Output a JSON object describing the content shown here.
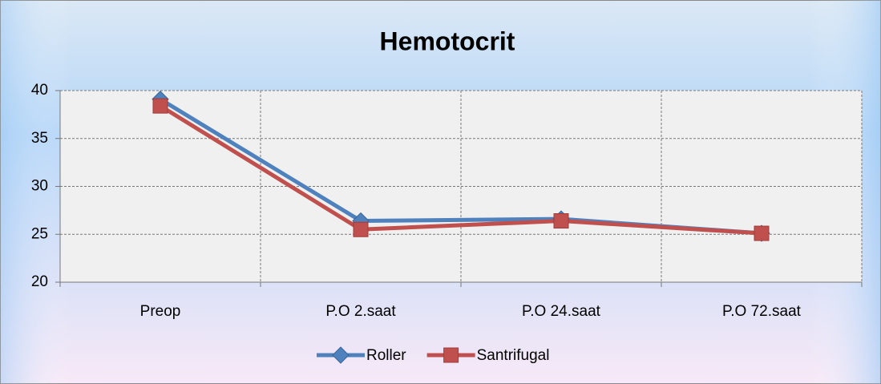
{
  "chart_data": {
    "type": "line",
    "title": "Hemotocrit",
    "categories": [
      "Preop",
      "P.O 2.saat",
      "P.O 24.saat",
      "P.O 72.saat"
    ],
    "series": [
      {
        "name": "Roller",
        "color": "#4f81bd",
        "marker": "diamond",
        "values": [
          39.1,
          26.4,
          26.6,
          25.1
        ]
      },
      {
        "name": "Santrifugal",
        "color": "#c0504d",
        "marker": "square",
        "values": [
          38.4,
          25.5,
          26.4,
          25.1
        ]
      }
    ],
    "ylim": [
      20,
      40
    ],
    "yticks": [
      20,
      25,
      30,
      35,
      40
    ],
    "grid": true,
    "legend": "bottom"
  }
}
